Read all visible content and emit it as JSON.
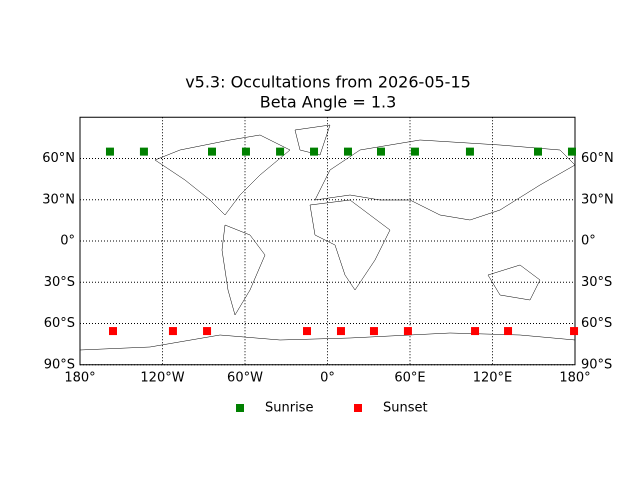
{
  "chart_data": {
    "type": "scatter",
    "title": "v5.3: Occultations from 2026-05-15",
    "subtitle": "Beta Angle = 1.3",
    "xlim": [
      -180,
      180
    ],
    "ylim": [
      -90,
      90
    ],
    "xticks": [
      {
        "value": -180,
        "label": "180°"
      },
      {
        "value": -120,
        "label": "120°W"
      },
      {
        "value": -60,
        "label": "60°W"
      },
      {
        "value": 0,
        "label": "0°"
      },
      {
        "value": 60,
        "label": "60°E"
      },
      {
        "value": 120,
        "label": "120°E"
      },
      {
        "value": 180,
        "label": "180°"
      }
    ],
    "yticks": [
      {
        "value": -90,
        "label": "90°S"
      },
      {
        "value": -60,
        "label": "60°S"
      },
      {
        "value": -30,
        "label": "30°S"
      },
      {
        "value": 0,
        "label": "0°"
      },
      {
        "value": 30,
        "label": "30°N"
      },
      {
        "value": 60,
        "label": "60°N"
      }
    ],
    "grid": true,
    "legend": "below",
    "series": [
      {
        "name": "Sunrise",
        "color": "#008000",
        "x": [
          -158.2,
          -133.5,
          -84,
          -59.3,
          -34.5,
          -9.8,
          14.9,
          38.9,
          63.6,
          103.6,
          153.1,
          177.8
        ],
        "values": [
          65,
          65,
          65,
          65,
          65,
          65,
          65,
          65,
          65,
          65,
          65,
          65
        ]
      },
      {
        "name": "Sunset",
        "color": "#ff0000",
        "x": [
          -156,
          -112.4,
          -87.6,
          -14.9,
          9.8,
          33.8,
          58.5,
          107.3,
          131.3,
          179.3
        ],
        "values": [
          -65.5,
          -65.5,
          -65.5,
          -65.5,
          -65.5,
          -65.5,
          -65.5,
          -65.5,
          -65.5,
          -65.5
        ]
      }
    ]
  }
}
